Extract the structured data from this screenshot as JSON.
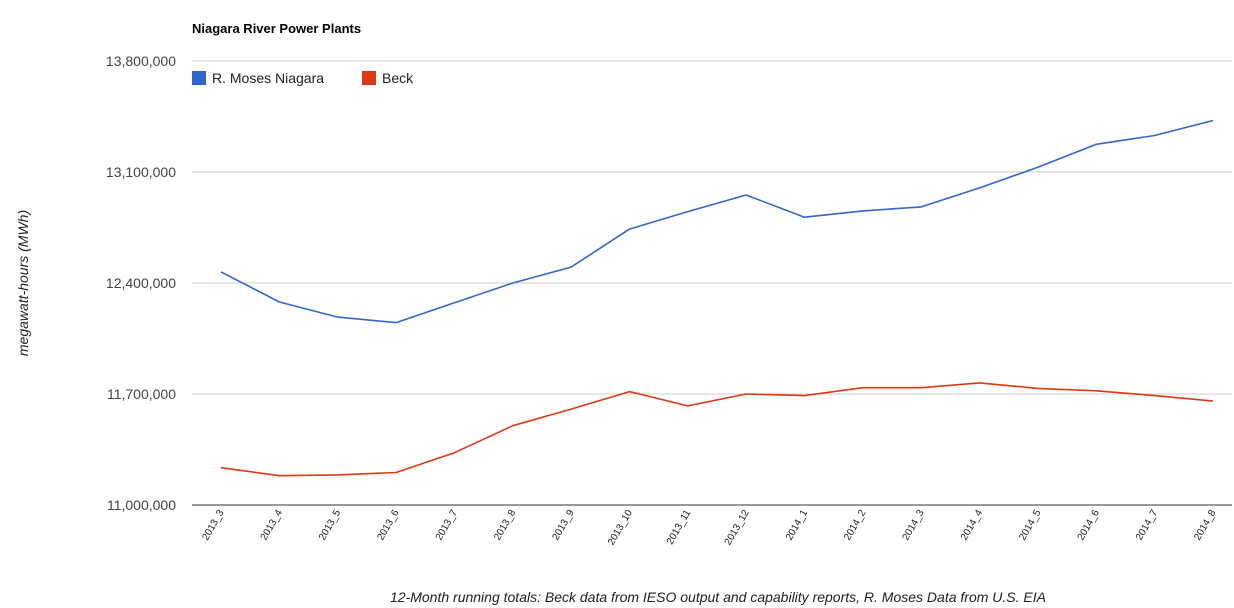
{
  "chart_data": {
    "type": "line",
    "title": "Niagara River Power Plants",
    "ylabel": "megawatt-hours (MWh)",
    "xlabel": "12-Month running totals: Beck data from IESO output and capability reports, R. Moses Data from U.S. EIA",
    "ylim": [
      11000000,
      13800000
    ],
    "yticks": [
      11000000,
      11700000,
      12400000,
      13100000,
      13800000
    ],
    "ytick_labels": [
      "11,000,000",
      "11,700,000",
      "12,400,000",
      "13,100,000",
      "13,800,000"
    ],
    "grid": true,
    "legend_position": "top-left",
    "categories": [
      "2013_3",
      "2013_4",
      "2013_5",
      "2013_6",
      "2013_7",
      "2013_8",
      "2013_9",
      "2013_10",
      "2013_11",
      "2013_12",
      "2014_1",
      "2014_2",
      "2014_3",
      "2014_4",
      "2014_5",
      "2014_6",
      "2014_7",
      "2014_8"
    ],
    "series": [
      {
        "name": "R. Moses Niagara",
        "color": "#3366cc",
        "values": [
          12470000,
          12280000,
          12185000,
          12150000,
          12275000,
          12400000,
          12500000,
          12740000,
          12850000,
          12955000,
          12815000,
          12855000,
          12880000,
          13000000,
          13130000,
          13275000,
          13330000,
          13425000
        ]
      },
      {
        "name": "Beck",
        "color": "#dc3912",
        "values": [
          11235000,
          11185000,
          11190000,
          11205000,
          11330000,
          11500000,
          11605000,
          11715000,
          11625000,
          11700000,
          11690000,
          11740000,
          11740000,
          11770000,
          11735000,
          11720000,
          11690000,
          11655000
        ]
      }
    ]
  }
}
